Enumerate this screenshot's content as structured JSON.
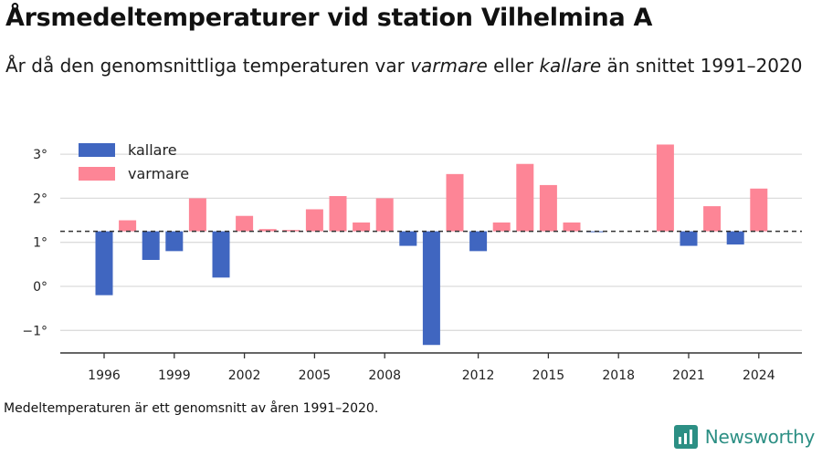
{
  "title": "Årsmedeltemperaturer vid station Vilhelmina A",
  "subtitle": {
    "part1": "År då den genomsnittliga temperaturen var ",
    "word1": "varmare",
    "part2": " eller ",
    "word2": "kallare",
    "part3": " än snittet 1991–2020"
  },
  "footnote": "Medeltemperaturen är ett genomsnitt av åren 1991–2020.",
  "brand": {
    "name": "Newsworthy",
    "icon": "newsworthy-logo-icon",
    "color": "#2c8f84"
  },
  "colors": {
    "kallare": "#4066c0",
    "varmare": "#fd8596",
    "grid": "#dcdcdc",
    "axis": "#333333",
    "reference": "#333333"
  },
  "chart_data": {
    "type": "bar",
    "baseline": 1.25,
    "baseline_style": "dashed",
    "x": [
      1996,
      1997,
      1998,
      1999,
      2000,
      2001,
      2002,
      2003,
      2004,
      2005,
      2006,
      2007,
      2008,
      2009,
      2010,
      2011,
      2012,
      2013,
      2014,
      2015,
      2016,
      2017,
      2018,
      2019,
      2020,
      2021,
      2022,
      2023,
      2024
    ],
    "values": [
      -0.2,
      1.5,
      0.6,
      0.8,
      2.0,
      0.2,
      1.6,
      1.3,
      1.28,
      1.75,
      2.05,
      1.45,
      2.0,
      0.92,
      -1.33,
      2.55,
      0.8,
      1.45,
      2.78,
      2.3,
      1.45,
      1.23,
      null,
      null,
      3.22,
      0.92,
      1.82,
      0.95,
      2.22
    ],
    "x_ticks": [
      "1996",
      "1999",
      "2002",
      "2005",
      "2008",
      "2012",
      "2015",
      "2018",
      "2021",
      "2024"
    ],
    "y_ticks": [
      "−1°",
      "0°",
      "1°",
      "2°",
      "3°"
    ],
    "y_tick_values": [
      -1,
      0,
      1,
      2,
      3
    ],
    "ylim": [
      -1.5,
      3.3
    ],
    "legend": [
      "kallare",
      "varmare"
    ],
    "legend_position": "top-left",
    "grid": true
  }
}
